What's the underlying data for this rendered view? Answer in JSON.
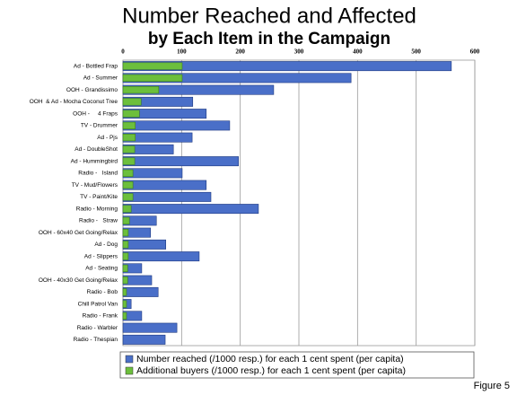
{
  "chart_data": {
    "type": "bar",
    "orientation": "horizontal",
    "title": "Number Reached and Affected",
    "subtitle": "by Each Item in the Campaign",
    "annotation": "Figure 5",
    "categories": [
      "Ad - Bottled Frap",
      "Ad - Summer",
      "OOH - Grandissimo",
      "OOH  & Ad - Mocha Coconut Tree",
      "OOH -     4 Fraps",
      "TV - Drummer",
      "Ad - Pjs",
      "Ad - DoubleShot",
      "Ad - Hummingbird",
      "Radio -   Island",
      "TV - Mud/Flowers",
      "TV - Paint/Kite",
      "Radio - Morning",
      "Radio -   Straw",
      "OOH - 60x40 Get Going/Relax",
      "Ad - Dog",
      "Ad - Slippers",
      "Ad - Seating",
      "OOH - 40x30 Get Going/Relax",
      "Radio - Bob",
      "Chill Patrol Van",
      "Radio - Frank",
      "Radio - Warbler",
      "Radio - Thespian"
    ],
    "series": [
      {
        "name": "Number reached (/1000 resp.) for each 1 cent spent (per capita)",
        "color": "#4a6fc8",
        "values": [
          560,
          389,
          257,
          119,
          142,
          182,
          118,
          86,
          197,
          101,
          142,
          150,
          231,
          57,
          47,
          73,
          130,
          32,
          49,
          60,
          14,
          32,
          92,
          72
        ]
      },
      {
        "name": "Additional buyers (/1000 resp.) for each 1 cent spent (per capita)",
        "color": "#6cbf3c",
        "values": [
          101,
          101,
          61,
          31,
          28,
          21,
          21,
          20,
          20,
          17,
          17,
          17,
          14,
          11,
          9,
          9,
          9,
          8,
          8,
          6,
          6,
          6,
          null,
          null
        ]
      }
    ],
    "xlim": [
      0,
      600
    ],
    "xticks": [
      0,
      100,
      200,
      300,
      400,
      500,
      600
    ],
    "grid": true,
    "legend": "bottom"
  }
}
